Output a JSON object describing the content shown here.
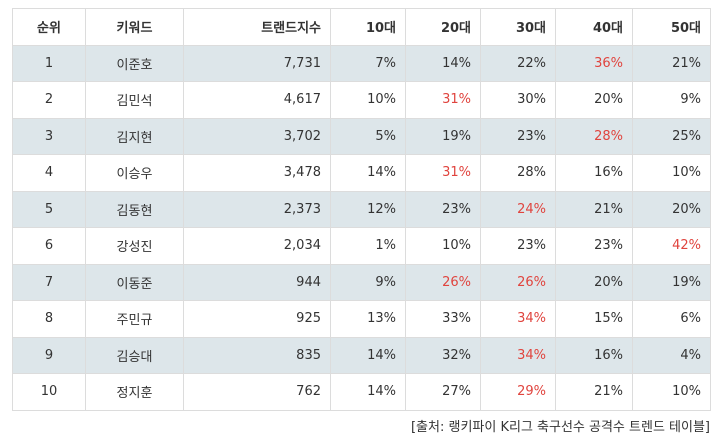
{
  "table": {
    "headers": [
      "순위",
      "키워드",
      "트랜드지수",
      "10대",
      "20대",
      "30대",
      "40대",
      "50대"
    ],
    "rows": [
      [
        "1",
        "이준호",
        "7,731",
        "7%",
        "14%",
        "22%",
        "36%",
        "21%"
      ],
      [
        "2",
        "김민석",
        "4,617",
        "10%",
        "31%",
        "30%",
        "20%",
        "9%"
      ],
      [
        "3",
        "김지현",
        "3,702",
        "5%",
        "19%",
        "23%",
        "28%",
        "25%"
      ],
      [
        "4",
        "이승우",
        "3,478",
        "14%",
        "31%",
        "28%",
        "16%",
        "10%"
      ],
      [
        "5",
        "김동현",
        "2,373",
        "12%",
        "23%",
        "24%",
        "21%",
        "20%"
      ],
      [
        "6",
        "강성진",
        "2,034",
        "1%",
        "10%",
        "23%",
        "23%",
        "42%"
      ],
      [
        "7",
        "이동준",
        "944",
        "9%",
        "26%",
        "26%",
        "20%",
        "19%"
      ],
      [
        "8",
        "주민규",
        "925",
        "13%",
        "33%",
        "34%",
        "15%",
        "6%"
      ],
      [
        "9",
        "김승대",
        "835",
        "14%",
        "32%",
        "34%",
        "16%",
        "4%"
      ],
      [
        "10",
        "정지훈",
        "762",
        "14%",
        "27%",
        "29%",
        "21%",
        "10%"
      ]
    ],
    "highlighted": [
      [
        6
      ],
      [
        4
      ],
      [
        6
      ],
      [
        4
      ],
      [
        5
      ],
      [
        7
      ],
      [
        4,
        5
      ],
      [
        5
      ],
      [
        5
      ],
      [
        5
      ]
    ],
    "highlight_color": "#e0443e",
    "caption": "[출처: 랭키파이 K리그 축구선수 공격수 트렌드 테이블]"
  }
}
